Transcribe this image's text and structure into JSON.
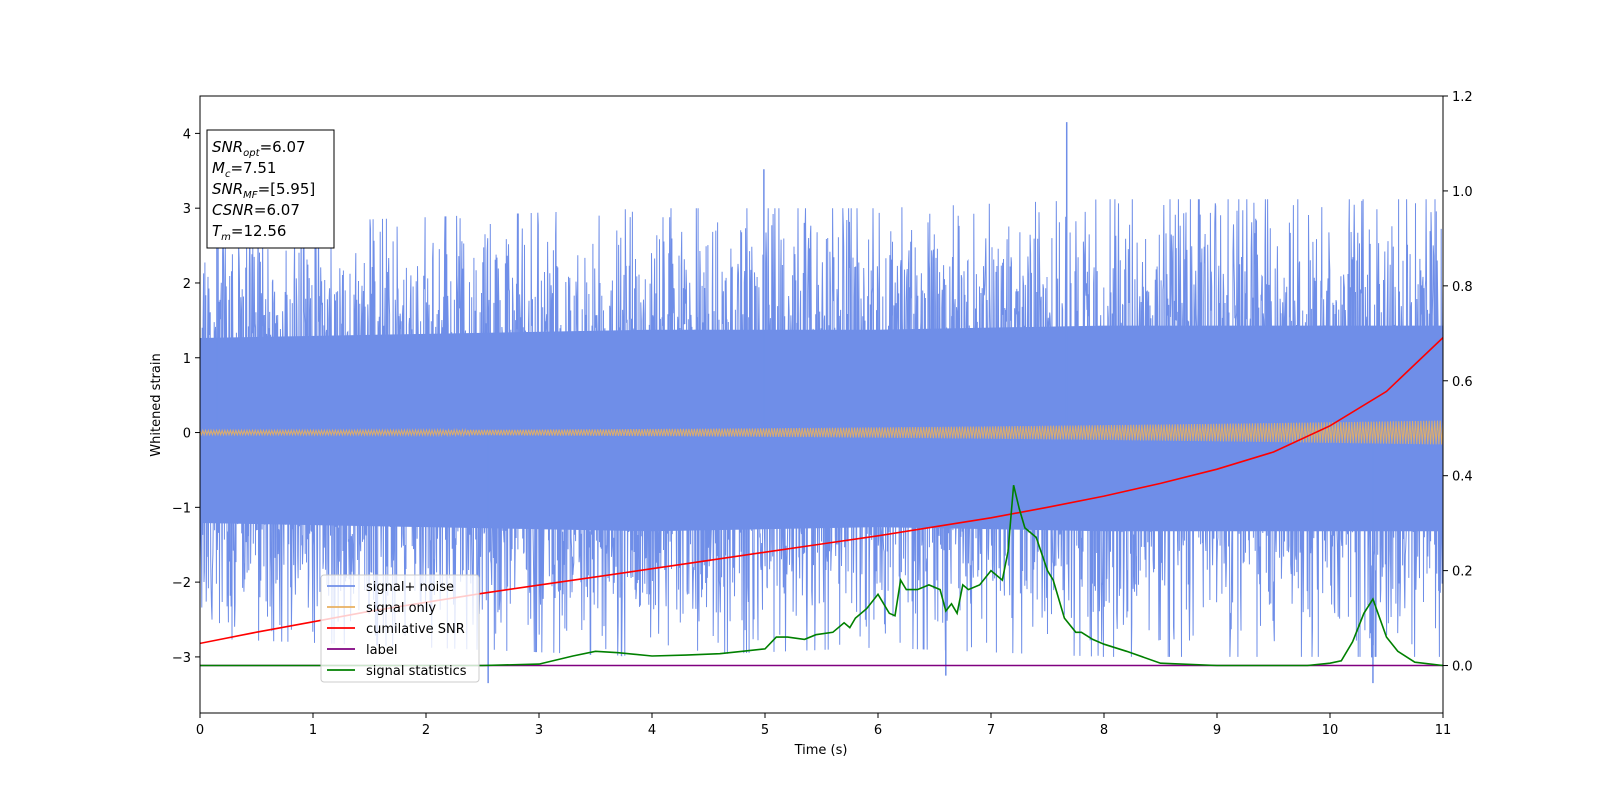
{
  "chart_data": {
    "type": "line",
    "xlabel": "Time (s)",
    "ylabel": "Whitened strain",
    "xlim": [
      0,
      11
    ],
    "ylim": [
      -3.75,
      4.5
    ],
    "ylim_right": [
      -0.1,
      1.2
    ],
    "xticks": [
      0,
      1,
      2,
      3,
      4,
      5,
      6,
      7,
      8,
      9,
      10,
      11
    ],
    "yticks": [
      -3,
      -2,
      -1,
      0,
      1,
      2,
      3,
      4
    ],
    "yticks_right": [
      0.0,
      0.2,
      0.4,
      0.6,
      0.8,
      1.0,
      1.2
    ],
    "xtick_labels": [
      "0",
      "1",
      "2",
      "3",
      "4",
      "5",
      "6",
      "7",
      "8",
      "9",
      "10",
      "11"
    ],
    "ytick_labels": [
      "−3",
      "−2",
      "−1",
      "0",
      "1",
      "2",
      "3",
      "4"
    ],
    "ytick_right_labels": [
      "0.0",
      "0.2",
      "0.4",
      "0.6",
      "0.8",
      "1.0",
      "1.2"
    ],
    "grid": false,
    "legend_placement": "lower-left",
    "annotation": [
      {
        "main": "SNR",
        "sub": "opt",
        "value": "=6.07"
      },
      {
        "main": "M",
        "sub": "c",
        "value": "=7.51"
      },
      {
        "main": "SNR",
        "sub": "MF",
        "value": "=[5.95]"
      },
      {
        "main": "CSNR",
        "sub": "",
        "value": "=6.07"
      },
      {
        "main": "T",
        "sub": "m",
        "value": "=12.56"
      }
    ],
    "series": [
      {
        "name": "signal+ noise",
        "color": "#6f8ee8",
        "axis": "left",
        "kind": "noise",
        "envelope_upper": [
          [
            0,
            2.3
          ],
          [
            2,
            2.4
          ],
          [
            4,
            2.5
          ],
          [
            6,
            2.5
          ],
          [
            8,
            2.6
          ],
          [
            11,
            2.6
          ]
        ],
        "envelope_lower": [
          [
            0,
            -2.2
          ],
          [
            2,
            -2.3
          ],
          [
            4,
            -2.4
          ],
          [
            6,
            -2.3
          ],
          [
            8,
            -2.4
          ],
          [
            11,
            -2.4
          ]
        ],
        "peaks": [
          [
            4.99,
            3.52
          ],
          [
            7.67,
            4.15
          ],
          [
            0.15,
            2.85
          ],
          [
            10.38,
            -3.35
          ],
          [
            2.55,
            -3.35
          ],
          [
            6.6,
            -3.25
          ]
        ]
      },
      {
        "name": "signal only",
        "color": "#e8b060",
        "axis": "left",
        "kind": "chirp",
        "amplitude_start": 0.03,
        "amplitude_end": 0.16
      },
      {
        "name": "cumilative SNR",
        "color": "#ff0000",
        "axis": "left",
        "x": [
          0,
          0.5,
          1,
          1.5,
          2,
          2.5,
          3,
          3.5,
          4,
          4.5,
          5,
          5.5,
          6,
          6.5,
          7,
          7.5,
          8,
          8.5,
          9,
          9.5,
          10,
          10.5,
          11
        ],
        "y": [
          -2.82,
          -2.67,
          -2.53,
          -2.39,
          -2.27,
          -2.15,
          -2.04,
          -1.93,
          -1.82,
          -1.71,
          -1.6,
          -1.49,
          -1.38,
          -1.26,
          -1.14,
          -1.0,
          -0.85,
          -0.68,
          -0.49,
          -0.26,
          0.09,
          0.55,
          1.27
        ]
      },
      {
        "name": "label",
        "color": "#800080",
        "axis": "right",
        "x": [
          0,
          11
        ],
        "y": [
          0.0,
          0.0
        ]
      },
      {
        "name": "signal statistics",
        "color": "#008000",
        "axis": "right",
        "x": [
          0,
          2.5,
          3.0,
          3.3,
          3.5,
          3.7,
          4.0,
          4.3,
          4.6,
          4.8,
          5.0,
          5.1,
          5.2,
          5.35,
          5.45,
          5.6,
          5.7,
          5.75,
          5.8,
          5.9,
          6.0,
          6.1,
          6.15,
          6.2,
          6.25,
          6.35,
          6.45,
          6.55,
          6.6,
          6.65,
          6.7,
          6.75,
          6.8,
          6.9,
          7.0,
          7.1,
          7.15,
          7.2,
          7.25,
          7.3,
          7.4,
          7.5,
          7.55,
          7.65,
          7.75,
          7.8,
          7.9,
          8.0,
          8.2,
          8.5,
          9.0,
          9.5,
          9.8,
          10.0,
          10.1,
          10.2,
          10.3,
          10.38,
          10.5,
          10.6,
          10.75,
          11.0
        ],
        "y": [
          0.0,
          0.0,
          0.003,
          0.02,
          0.03,
          0.027,
          0.02,
          0.022,
          0.025,
          0.03,
          0.035,
          0.06,
          0.06,
          0.055,
          0.065,
          0.07,
          0.09,
          0.08,
          0.1,
          0.12,
          0.15,
          0.11,
          0.105,
          0.18,
          0.16,
          0.16,
          0.17,
          0.16,
          0.115,
          0.13,
          0.11,
          0.17,
          0.16,
          0.17,
          0.2,
          0.18,
          0.24,
          0.38,
          0.33,
          0.29,
          0.27,
          0.2,
          0.18,
          0.1,
          0.07,
          0.07,
          0.055,
          0.045,
          0.03,
          0.005,
          0.0,
          0.0,
          0.0,
          0.005,
          0.01,
          0.05,
          0.11,
          0.14,
          0.06,
          0.03,
          0.007,
          0.0
        ]
      }
    ]
  }
}
